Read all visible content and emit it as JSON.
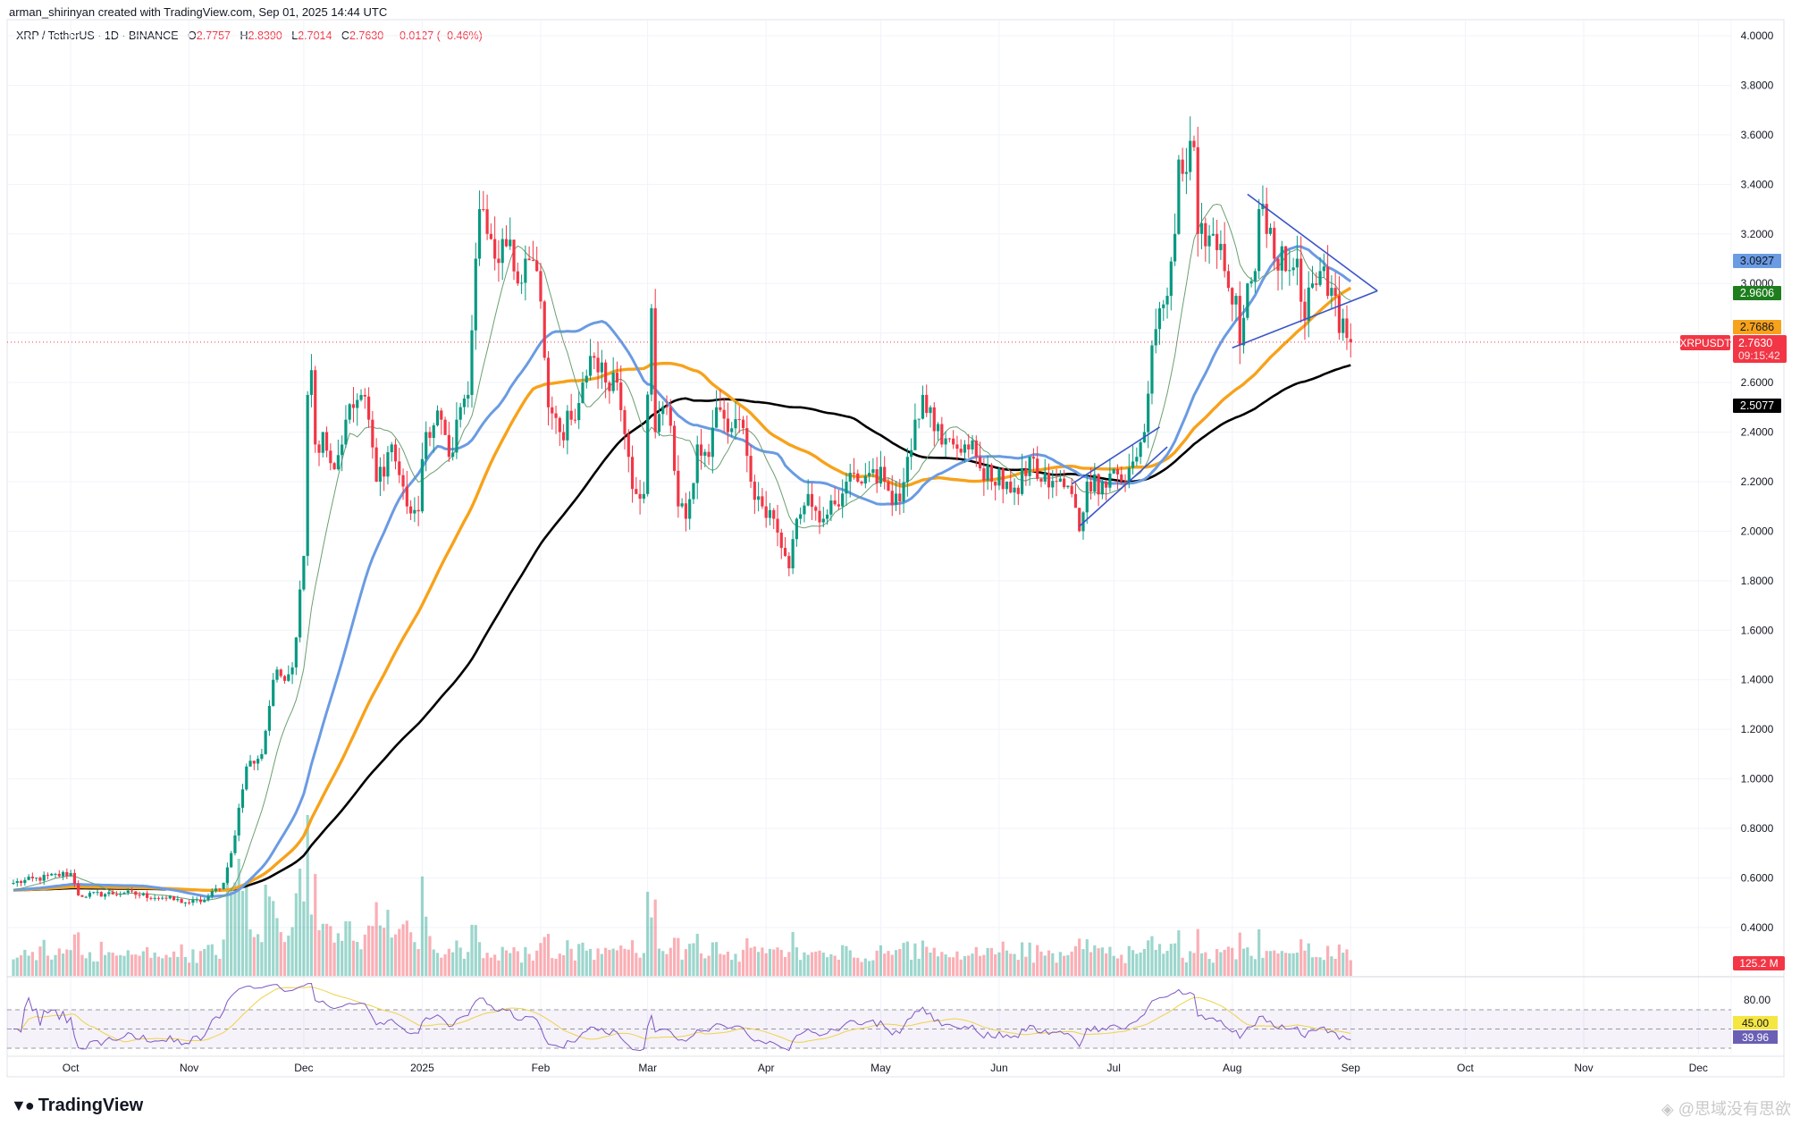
{
  "credit": "arman_shirinyan created with TradingView.com, Sep 01, 2025 14:44 UTC",
  "legend": {
    "symbol": "XRP / TetherUS · 1D · BINANCE",
    "open_label": "O",
    "open": "2.7757",
    "high_label": "H",
    "high": "2.8390",
    "low_label": "L",
    "low": "2.7014",
    "close_label": "C",
    "close": "2.7630",
    "change": "−0.0127 (−0.46%)"
  },
  "footer": {
    "logo": "TradingView",
    "watermark": "@思域没有思欲"
  },
  "colors": {
    "up": "#089981",
    "down": "#f23645",
    "ma_thin": "#6b9f72",
    "ma_blue": "#6a9be3",
    "ma_orange": "#f7a21b",
    "ma_black": "#000000",
    "trendline": "#3a55c9",
    "rsi": "#7e57c2",
    "rsi_ma": "#f0d24a"
  },
  "chart_data": {
    "type": "candlestick",
    "symbol": "XRPUSDT",
    "interval": "1D",
    "ylim": [
      0.4,
      4.0
    ],
    "y_scale": "linear",
    "grid": true,
    "price_ticks": [
      "4.0000",
      "3.8000",
      "3.6000",
      "3.4000",
      "3.2000",
      "3.0000",
      "2.6000",
      "2.4000",
      "2.2000",
      "2.0000",
      "1.8000",
      "1.6000",
      "1.4000",
      "1.2000",
      "1.0000",
      "0.8000",
      "0.6000",
      "0.4000"
    ],
    "x_ticks": [
      {
        "date": "2024-10-01",
        "label": "Oct"
      },
      {
        "date": "2024-11-01",
        "label": "Nov"
      },
      {
        "date": "2024-12-01",
        "label": "Dec"
      },
      {
        "date": "2025-01-01",
        "label": "2025"
      },
      {
        "date": "2025-02-01",
        "label": "Feb"
      },
      {
        "date": "2025-03-01",
        "label": "Mar"
      },
      {
        "date": "2025-04-01",
        "label": "Apr"
      },
      {
        "date": "2025-05-01",
        "label": "May"
      },
      {
        "date": "2025-06-01",
        "label": "Jun"
      },
      {
        "date": "2025-07-01",
        "label": "Jul"
      },
      {
        "date": "2025-08-01",
        "label": "Aug"
      },
      {
        "date": "2025-09-01",
        "label": "Sep"
      },
      {
        "date": "2025-10-01",
        "label": "Oct"
      },
      {
        "date": "2025-11-01",
        "label": "Nov"
      },
      {
        "date": "2025-12-01",
        "label": "Dec"
      }
    ],
    "x_range": [
      "2024-09-16",
      "2025-12-10"
    ],
    "closes": [
      [
        "2024-09-16",
        0.58
      ],
      [
        "2024-10-01",
        0.62
      ],
      [
        "2024-10-03",
        0.53
      ],
      [
        "2024-10-15",
        0.54
      ],
      [
        "2024-10-25",
        0.52
      ],
      [
        "2024-11-01",
        0.5
      ],
      [
        "2024-11-05",
        0.51
      ],
      [
        "2024-11-10",
        0.58
      ],
      [
        "2024-11-12",
        0.7
      ],
      [
        "2024-11-16",
        1.05
      ],
      [
        "2024-11-20",
        1.1
      ],
      [
        "2024-11-23",
        1.4
      ],
      [
        "2024-11-28",
        1.45
      ],
      [
        "2024-12-01",
        1.9
      ],
      [
        "2024-12-02",
        2.55
      ],
      [
        "2024-12-03",
        2.65
      ],
      [
        "2024-12-04",
        2.35
      ],
      [
        "2024-12-06",
        2.4
      ],
      [
        "2024-12-09",
        2.25
      ],
      [
        "2024-12-12",
        2.45
      ],
      [
        "2024-12-16",
        2.55
      ],
      [
        "2024-12-18",
        2.45
      ],
      [
        "2024-12-20",
        2.2
      ],
      [
        "2024-12-24",
        2.35
      ],
      [
        "2024-12-28",
        2.1
      ],
      [
        "2024-12-31",
        2.08
      ],
      [
        "2025-01-02",
        2.4
      ],
      [
        "2025-01-06",
        2.45
      ],
      [
        "2025-01-08",
        2.3
      ],
      [
        "2025-01-10",
        2.45
      ],
      [
        "2025-01-13",
        2.55
      ],
      [
        "2025-01-15",
        3.1
      ],
      [
        "2025-01-16",
        3.3
      ],
      [
        "2025-01-18",
        3.2
      ],
      [
        "2025-01-20",
        3.1
      ],
      [
        "2025-01-23",
        3.15
      ],
      [
        "2025-01-26",
        3.0
      ],
      [
        "2025-01-28",
        3.1
      ],
      [
        "2025-01-31",
        3.05
      ],
      [
        "2025-02-02",
        2.7
      ],
      [
        "2025-02-03",
        2.5
      ],
      [
        "2025-02-06",
        2.4
      ],
      [
        "2025-02-09",
        2.45
      ],
      [
        "2025-02-12",
        2.6
      ],
      [
        "2025-02-15",
        2.7
      ],
      [
        "2025-02-18",
        2.6
      ],
      [
        "2025-02-21",
        2.6
      ],
      [
        "2025-02-24",
        2.3
      ],
      [
        "2025-02-26",
        2.15
      ],
      [
        "2025-02-28",
        2.15
      ],
      [
        "2025-03-02",
        2.9
      ],
      [
        "2025-03-03",
        2.4
      ],
      [
        "2025-03-06",
        2.5
      ],
      [
        "2025-03-09",
        2.1
      ],
      [
        "2025-03-11",
        2.05
      ],
      [
        "2025-03-14",
        2.35
      ],
      [
        "2025-03-17",
        2.3
      ],
      [
        "2025-03-19",
        2.5
      ],
      [
        "2025-03-22",
        2.4
      ],
      [
        "2025-03-25",
        2.45
      ],
      [
        "2025-03-28",
        2.2
      ],
      [
        "2025-03-31",
        2.1
      ],
      [
        "2025-04-03",
        2.05
      ],
      [
        "2025-04-06",
        1.9
      ],
      [
        "2025-04-07",
        1.85
      ],
      [
        "2025-04-09",
        2.05
      ],
      [
        "2025-04-12",
        2.15
      ],
      [
        "2025-04-16",
        2.05
      ],
      [
        "2025-04-20",
        2.1
      ],
      [
        "2025-04-22",
        2.2
      ],
      [
        "2025-04-25",
        2.2
      ],
      [
        "2025-04-29",
        2.25
      ],
      [
        "2025-05-02",
        2.2
      ],
      [
        "2025-05-06",
        2.12
      ],
      [
        "2025-05-08",
        2.3
      ],
      [
        "2025-05-10",
        2.45
      ],
      [
        "2025-05-12",
        2.55
      ],
      [
        "2025-05-14",
        2.5
      ],
      [
        "2025-05-17",
        2.35
      ],
      [
        "2025-05-20",
        2.35
      ],
      [
        "2025-05-23",
        2.35
      ],
      [
        "2025-05-26",
        2.3
      ],
      [
        "2025-05-30",
        2.2
      ],
      [
        "2025-06-03",
        2.2
      ],
      [
        "2025-06-06",
        2.15
      ],
      [
        "2025-06-09",
        2.3
      ],
      [
        "2025-06-12",
        2.2
      ],
      [
        "2025-06-16",
        2.2
      ],
      [
        "2025-06-20",
        2.15
      ],
      [
        "2025-06-22",
        2.0
      ],
      [
        "2025-06-24",
        2.2
      ],
      [
        "2025-06-28",
        2.2
      ],
      [
        "2025-07-01",
        2.25
      ],
      [
        "2025-07-04",
        2.2
      ],
      [
        "2025-07-07",
        2.3
      ],
      [
        "2025-07-09",
        2.4
      ],
      [
        "2025-07-11",
        2.75
      ],
      [
        "2025-07-13",
        2.9
      ],
      [
        "2025-07-15",
        2.95
      ],
      [
        "2025-07-17",
        3.2
      ],
      [
        "2025-07-18",
        3.5
      ],
      [
        "2025-07-20",
        3.45
      ],
      [
        "2025-07-22",
        3.55
      ],
      [
        "2025-07-23",
        3.2
      ],
      [
        "2025-07-25",
        3.15
      ],
      [
        "2025-07-27",
        3.2
      ],
      [
        "2025-07-30",
        3.05
      ],
      [
        "2025-08-02",
        2.95
      ],
      [
        "2025-08-03",
        2.75
      ],
      [
        "2025-08-05",
        3.0
      ],
      [
        "2025-08-07",
        3.05
      ],
      [
        "2025-08-08",
        3.3
      ],
      [
        "2025-08-10",
        3.2
      ],
      [
        "2025-08-12",
        3.1
      ],
      [
        "2025-08-14",
        3.15
      ],
      [
        "2025-08-15",
        3.05
      ],
      [
        "2025-08-18",
        3.1
      ],
      [
        "2025-08-20",
        2.85
      ],
      [
        "2025-08-22",
        3.0
      ],
      [
        "2025-08-24",
        3.05
      ],
      [
        "2025-08-26",
        2.95
      ],
      [
        "2025-08-28",
        2.95
      ],
      [
        "2025-08-29",
        2.8
      ],
      [
        "2025-08-31",
        2.78
      ],
      [
        "2025-09-01",
        2.763
      ]
    ],
    "last_candle": {
      "date": "2025-09-01",
      "open": 2.7757,
      "high": 2.839,
      "low": 2.7014,
      "close": 2.763
    },
    "moving_averages": [
      {
        "color_key": "ma_thin",
        "last": "2.9606",
        "tag_color": "#1e7e1e"
      },
      {
        "color_key": "ma_blue",
        "last": "3.0927",
        "tag_color": "#6a9be3"
      },
      {
        "color_key": "ma_orange",
        "last": "2.7686",
        "tag_color": "#f7a21b"
      },
      {
        "color_key": "ma_black",
        "last": "2.5077",
        "tag_color": "#000000"
      }
    ],
    "price_tag": {
      "symbol": "XRPUSDT",
      "price": "2.7630",
      "countdown": "09:15:42"
    },
    "trendlines": [
      {
        "from": [
          "2025-08-05",
          3.36
        ],
        "to": [
          "2025-09-08",
          2.97
        ]
      },
      {
        "from": [
          "2025-08-01",
          2.74
        ],
        "to": [
          "2025-09-08",
          2.97
        ]
      },
      {
        "from": [
          "2025-06-20",
          2.19
        ],
        "to": [
          "2025-07-13",
          2.42
        ]
      },
      {
        "from": [
          "2025-06-22",
          2.02
        ],
        "to": [
          "2025-07-15",
          2.34
        ]
      }
    ],
    "volume": {
      "last": "125.2 M"
    },
    "rsi": {
      "levels": [
        70,
        50,
        30
      ],
      "axis_label": "80.00",
      "ma_value": "45.00",
      "value": "39.96"
    }
  }
}
